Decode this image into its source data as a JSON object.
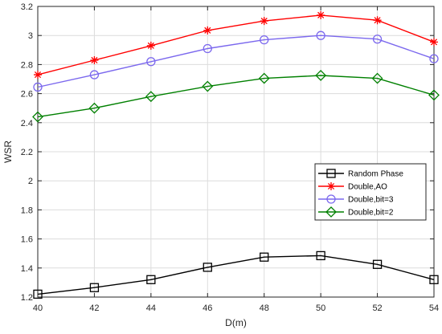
{
  "chart_data": {
    "type": "line",
    "title": "",
    "xlabel": "D(m)",
    "ylabel": "WSR",
    "xlim": [
      40,
      54
    ],
    "ylim": [
      1.2,
      3.2
    ],
    "xticks": [
      40,
      42,
      44,
      46,
      48,
      50,
      52,
      54
    ],
    "yticks": [
      1.2,
      1.4,
      1.6,
      1.8,
      2,
      2.2,
      2.4,
      2.6,
      2.8,
      3,
      3.2
    ],
    "ytick_labels": [
      "1.2",
      "1.4",
      "1.6",
      "1.8",
      "2",
      "2.2",
      "2.4",
      "2.6",
      "2.8",
      "3",
      "3.2"
    ],
    "grid": true,
    "legend_position": "right",
    "x": [
      40,
      42,
      44,
      46,
      48,
      50,
      52,
      54
    ],
    "series": [
      {
        "name": "Random Phase",
        "color": "#000000",
        "marker": "square",
        "values": [
          1.22,
          1.265,
          1.32,
          1.405,
          1.475,
          1.485,
          1.425,
          1.32
        ]
      },
      {
        "name": "Double,AO",
        "color": "#ff0000",
        "marker": "asterisk",
        "values": [
          2.73,
          2.83,
          2.93,
          3.035,
          3.1,
          3.14,
          3.105,
          2.955
        ]
      },
      {
        "name": "Double,bit=3",
        "color": "#7b68ee",
        "marker": "circle",
        "values": [
          2.645,
          2.73,
          2.82,
          2.91,
          2.97,
          3.0,
          2.975,
          2.84
        ]
      },
      {
        "name": "Double,bit=2",
        "color": "#008000",
        "marker": "diamond",
        "values": [
          2.44,
          2.5,
          2.58,
          2.65,
          2.705,
          2.725,
          2.705,
          2.59
        ]
      }
    ]
  }
}
